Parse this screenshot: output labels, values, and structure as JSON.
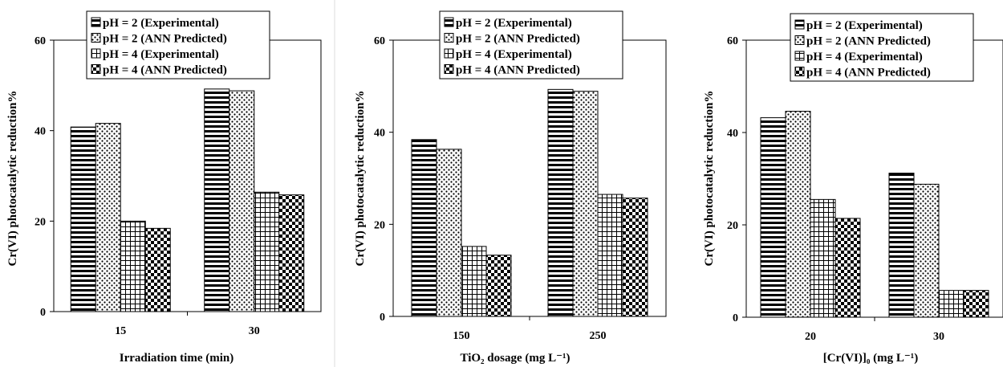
{
  "chart_data": [
    {
      "type": "bar",
      "categories": [
        "15",
        "30"
      ],
      "xlabel": "Irradiation  time (min)",
      "ylabel": "Cr(VI)  photocatalytic reduction%",
      "ylim": [
        0,
        60
      ],
      "yticks": [
        "0",
        "20",
        "40",
        "60"
      ],
      "series": [
        {
          "name": "pH = 2 (Experimental)",
          "values": [
            40.8,
            49.2
          ]
        },
        {
          "name": "pH = 2 (ANN Predicted)",
          "values": [
            41.6,
            48.8
          ]
        },
        {
          "name": "pH = 4 (Experimental)",
          "values": [
            20.0,
            26.4
          ]
        },
        {
          "name": "pH = 4 (ANN Predicted)",
          "values": [
            18.4,
            25.8
          ]
        }
      ],
      "legend": "top-center"
    },
    {
      "type": "bar",
      "categories": [
        "150",
        "250"
      ],
      "xlabel": "TiO₂ dosage (mg L⁻¹)",
      "ylabel": "Cr(VI)  photocatalytic reduction%",
      "ylim": [
        0,
        60
      ],
      "yticks": [
        "0",
        "20",
        "40",
        "60"
      ],
      "series": [
        {
          "name": "pH = 2 (Experimental)",
          "values": [
            38.4,
            49.3
          ]
        },
        {
          "name": "pH = 2 (ANN Predicted)",
          "values": [
            36.3,
            48.9
          ]
        },
        {
          "name": "pH = 4 (Experimental)",
          "values": [
            15.2,
            26.5
          ]
        },
        {
          "name": "pH = 4 (ANN Predicted)",
          "values": [
            13.3,
            25.7
          ]
        }
      ],
      "legend": "top-center"
    },
    {
      "type": "bar",
      "categories": [
        "20",
        "30"
      ],
      "xlabel": "[Cr(VI)]₀ (mg L⁻¹)",
      "ylabel": "Cr(VI)  photocatalytic reduction%",
      "ylim": [
        0,
        60
      ],
      "yticks": [
        "0",
        "20",
        "40",
        "60"
      ],
      "series": [
        {
          "name": "pH = 2 (Experimental)",
          "values": [
            43.2,
            31.2
          ]
        },
        {
          "name": "pH = 2 (ANN Predicted)",
          "values": [
            44.6,
            28.8
          ]
        },
        {
          "name": "pH = 4 (Experimental)",
          "values": [
            25.5,
            5.8
          ]
        },
        {
          "name": "pH = 4 (ANN Predicted)",
          "values": [
            21.4,
            5.8
          ]
        }
      ],
      "legend": "top-center"
    }
  ],
  "colors": {
    "bar_ink": "#000000",
    "background": "#ffffff",
    "divider": "#dddddd"
  }
}
